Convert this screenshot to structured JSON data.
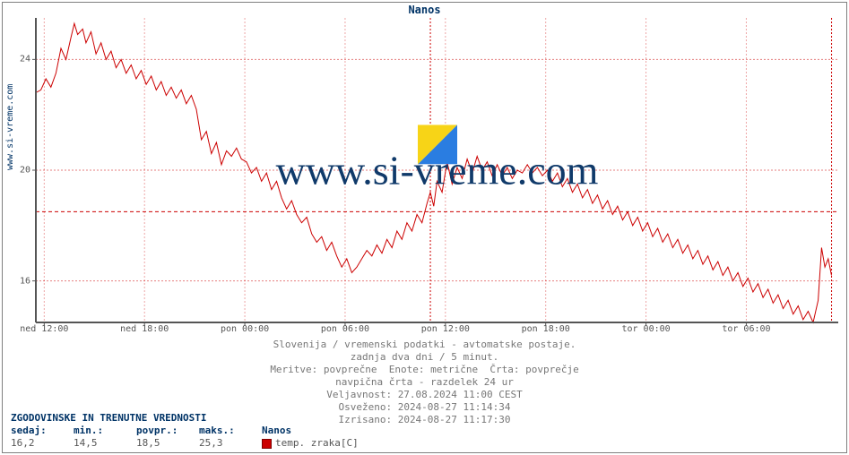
{
  "title": "Nanos",
  "side_label": "www.si-vreme.com",
  "watermark_text": "www.si-vreme.com",
  "chart": {
    "type": "line",
    "background_color": "#ffffff",
    "frame_color": "#7f7f7f",
    "axis_color": "#555555",
    "axis_width": 2,
    "grid_major_color": "#cc0000",
    "grid_major_dash": "2,2",
    "baseline_color": "#cc0000",
    "baseline_dash": "4,3",
    "vline_now_color": "#cc0000",
    "vline_now_dash": "2,2",
    "vline_day_color": "#cc0000",
    "vline_day_dash": "2,2",
    "line_color": "#cc0000",
    "line_width": 1,
    "y": {
      "min": 14.5,
      "max": 25.5,
      "ticks": [
        16,
        20,
        24
      ],
      "baseline": 18.5,
      "fontsize": 10,
      "color": "#555555"
    },
    "x": {
      "min": 0,
      "max": 48,
      "ticks": [
        {
          "t": 0.5,
          "label": "ned 12:00"
        },
        {
          "t": 6.5,
          "label": "ned 18:00"
        },
        {
          "t": 12.5,
          "label": "pon 00:00"
        },
        {
          "t": 18.5,
          "label": "pon 06:00"
        },
        {
          "t": 24.5,
          "label": "pon 12:00"
        },
        {
          "t": 30.5,
          "label": "pon 18:00"
        },
        {
          "t": 36.5,
          "label": "tor 00:00"
        },
        {
          "t": 42.5,
          "label": "tor 06:00"
        }
      ],
      "now_line_t": 47.6,
      "day_sep_t": 23.6,
      "fontsize": 10,
      "color": "#555555"
    },
    "series": [
      [
        0,
        22.8
      ],
      [
        0.3,
        22.9
      ],
      [
        0.6,
        23.3
      ],
      [
        0.9,
        23.0
      ],
      [
        1.2,
        23.5
      ],
      [
        1.5,
        24.4
      ],
      [
        1.8,
        24.0
      ],
      [
        2.1,
        24.8
      ],
      [
        2.3,
        25.3
      ],
      [
        2.5,
        24.9
      ],
      [
        2.8,
        25.1
      ],
      [
        3.0,
        24.6
      ],
      [
        3.3,
        25.0
      ],
      [
        3.6,
        24.2
      ],
      [
        3.9,
        24.6
      ],
      [
        4.2,
        24.0
      ],
      [
        4.5,
        24.3
      ],
      [
        4.8,
        23.7
      ],
      [
        5.1,
        24.0
      ],
      [
        5.4,
        23.5
      ],
      [
        5.7,
        23.8
      ],
      [
        6.0,
        23.3
      ],
      [
        6.3,
        23.6
      ],
      [
        6.6,
        23.1
      ],
      [
        6.9,
        23.4
      ],
      [
        7.2,
        22.9
      ],
      [
        7.5,
        23.2
      ],
      [
        7.8,
        22.7
      ],
      [
        8.1,
        23.0
      ],
      [
        8.4,
        22.6
      ],
      [
        8.7,
        22.9
      ],
      [
        9.0,
        22.4
      ],
      [
        9.3,
        22.7
      ],
      [
        9.6,
        22.2
      ],
      [
        9.9,
        21.1
      ],
      [
        10.2,
        21.4
      ],
      [
        10.5,
        20.6
      ],
      [
        10.8,
        21.0
      ],
      [
        11.1,
        20.2
      ],
      [
        11.4,
        20.7
      ],
      [
        11.7,
        20.5
      ],
      [
        12.0,
        20.8
      ],
      [
        12.3,
        20.4
      ],
      [
        12.6,
        20.3
      ],
      [
        12.9,
        19.9
      ],
      [
        13.2,
        20.1
      ],
      [
        13.5,
        19.6
      ],
      [
        13.8,
        19.9
      ],
      [
        14.1,
        19.3
      ],
      [
        14.4,
        19.6
      ],
      [
        14.7,
        19.0
      ],
      [
        15.0,
        18.6
      ],
      [
        15.3,
        18.9
      ],
      [
        15.6,
        18.4
      ],
      [
        15.9,
        18.1
      ],
      [
        16.2,
        18.3
      ],
      [
        16.5,
        17.7
      ],
      [
        16.8,
        17.4
      ],
      [
        17.1,
        17.6
      ],
      [
        17.4,
        17.1
      ],
      [
        17.7,
        17.4
      ],
      [
        18.0,
        16.9
      ],
      [
        18.3,
        16.5
      ],
      [
        18.6,
        16.8
      ],
      [
        18.9,
        16.3
      ],
      [
        19.2,
        16.5
      ],
      [
        19.5,
        16.8
      ],
      [
        19.8,
        17.1
      ],
      [
        20.1,
        16.9
      ],
      [
        20.4,
        17.3
      ],
      [
        20.7,
        17.0
      ],
      [
        21.0,
        17.5
      ],
      [
        21.3,
        17.2
      ],
      [
        21.6,
        17.8
      ],
      [
        21.9,
        17.5
      ],
      [
        22.2,
        18.1
      ],
      [
        22.5,
        17.8
      ],
      [
        22.8,
        18.4
      ],
      [
        23.1,
        18.1
      ],
      [
        23.4,
        18.8
      ],
      [
        23.6,
        19.2
      ],
      [
        23.8,
        18.7
      ],
      [
        24.0,
        19.6
      ],
      [
        24.3,
        19.2
      ],
      [
        24.6,
        20.3
      ],
      [
        24.9,
        19.5
      ],
      [
        25.2,
        20.1
      ],
      [
        25.5,
        19.7
      ],
      [
        25.8,
        20.4
      ],
      [
        26.1,
        19.9
      ],
      [
        26.4,
        20.5
      ],
      [
        26.7,
        20.0
      ],
      [
        27.0,
        20.3
      ],
      [
        27.3,
        19.8
      ],
      [
        27.6,
        20.2
      ],
      [
        27.9,
        19.8
      ],
      [
        28.2,
        20.1
      ],
      [
        28.5,
        19.7
      ],
      [
        28.8,
        20.0
      ],
      [
        29.1,
        19.9
      ],
      [
        29.4,
        20.2
      ],
      [
        29.7,
        19.9
      ],
      [
        30.0,
        20.1
      ],
      [
        30.3,
        19.8
      ],
      [
        30.6,
        20.0
      ],
      [
        30.9,
        19.6
      ],
      [
        31.2,
        19.9
      ],
      [
        31.5,
        19.4
      ],
      [
        31.8,
        19.7
      ],
      [
        32.1,
        19.2
      ],
      [
        32.4,
        19.5
      ],
      [
        32.7,
        19.0
      ],
      [
        33.0,
        19.3
      ],
      [
        33.3,
        18.8
      ],
      [
        33.6,
        19.1
      ],
      [
        33.9,
        18.6
      ],
      [
        34.2,
        18.9
      ],
      [
        34.5,
        18.4
      ],
      [
        34.8,
        18.7
      ],
      [
        35.1,
        18.2
      ],
      [
        35.4,
        18.5
      ],
      [
        35.7,
        18.0
      ],
      [
        36.0,
        18.3
      ],
      [
        36.3,
        17.8
      ],
      [
        36.6,
        18.1
      ],
      [
        36.9,
        17.6
      ],
      [
        37.2,
        17.9
      ],
      [
        37.5,
        17.4
      ],
      [
        37.8,
        17.7
      ],
      [
        38.1,
        17.2
      ],
      [
        38.4,
        17.5
      ],
      [
        38.7,
        17.0
      ],
      [
        39.0,
        17.3
      ],
      [
        39.3,
        16.8
      ],
      [
        39.6,
        17.1
      ],
      [
        39.9,
        16.6
      ],
      [
        40.2,
        16.9
      ],
      [
        40.5,
        16.4
      ],
      [
        40.8,
        16.7
      ],
      [
        41.1,
        16.2
      ],
      [
        41.4,
        16.5
      ],
      [
        41.7,
        16.0
      ],
      [
        42.0,
        16.3
      ],
      [
        42.3,
        15.8
      ],
      [
        42.6,
        16.1
      ],
      [
        42.9,
        15.6
      ],
      [
        43.2,
        15.9
      ],
      [
        43.5,
        15.4
      ],
      [
        43.8,
        15.7
      ],
      [
        44.1,
        15.2
      ],
      [
        44.4,
        15.5
      ],
      [
        44.7,
        15.0
      ],
      [
        45.0,
        15.3
      ],
      [
        45.3,
        14.8
      ],
      [
        45.6,
        15.1
      ],
      [
        45.9,
        14.6
      ],
      [
        46.2,
        14.9
      ],
      [
        46.5,
        14.5
      ],
      [
        46.8,
        15.3
      ],
      [
        47.0,
        17.2
      ],
      [
        47.2,
        16.5
      ],
      [
        47.4,
        16.8
      ],
      [
        47.6,
        16.2
      ]
    ]
  },
  "meta": {
    "line1": "Slovenija / vremenski podatki - avtomatske postaje.",
    "line2": "zadnja dva dni / 5 minut.",
    "line3": "Meritve: povprečne  Enote: metrične  Črta: povprečje",
    "line4": "navpična črta - razdelek 24 ur",
    "line5": "Veljavnost: 27.08.2024 11:00 CEST",
    "line6": "Osveženo: 2024-08-27 11:14:34",
    "line7": "Izrisano: 2024-08-27 11:17:30",
    "fontsize": 11,
    "color": "#777777"
  },
  "stats": {
    "title": "ZGODOVINSKE IN TRENUTNE VREDNOSTI",
    "headers": [
      "sedaj:",
      "min.:",
      "povpr.:",
      "maks.:"
    ],
    "values": [
      "16,2",
      "14,5",
      "18,5",
      "25,3"
    ],
    "series_name": "Nanos",
    "legend": "temp. zraka[C]",
    "title_color": "#003366",
    "header_color": "#003366",
    "value_color": "#555555",
    "legend_box_fill": "#cc0000",
    "legend_box_border": "#800000"
  },
  "watermark_icon": {
    "tri1_color": "#2a7de1",
    "tri2_color": "#f7d417"
  }
}
